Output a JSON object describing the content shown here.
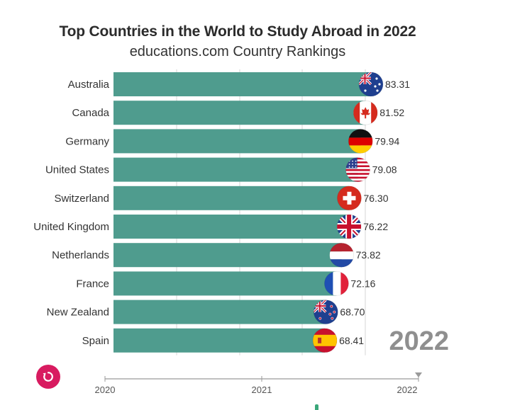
{
  "header": {
    "title": "Top Countries in the World to Study Abroad in 2022",
    "subtitle": "educations.com Country Rankings"
  },
  "colors": {
    "bar": "#4f9c8e",
    "replay": "#d81b60",
    "year": "#8f8f8f"
  },
  "chart_data": {
    "type": "bar",
    "orientation": "horizontal",
    "title": "Top Countries in the World to Study Abroad in 2022",
    "subtitle": "educations.com Country Rankings",
    "categories": [
      "Australia",
      "Canada",
      "Germany",
      "United States",
      "Switzerland",
      "United Kingdom",
      "Netherlands",
      "France",
      "New Zealand",
      "Spain"
    ],
    "values": [
      83.31,
      81.52,
      79.94,
      79.08,
      76.3,
      76.22,
      73.82,
      72.16,
      68.7,
      68.41
    ],
    "value_labels": [
      "83.31",
      "81.52",
      "79.94",
      "79.08",
      "76.30",
      "76.22",
      "73.82",
      "72.16",
      "68.70",
      "68.41"
    ],
    "flags": [
      "australia-flag",
      "canada-flag",
      "germany-flag",
      "usa-flag",
      "switzerland-flag",
      "uk-flag",
      "netherlands-flag",
      "france-flag",
      "new-zealand-flag",
      "spain-flag"
    ],
    "current_year": "2022",
    "grid": true,
    "legend": "none"
  },
  "timeline": {
    "ticks": [
      "2020",
      "2021",
      "2022"
    ],
    "position": "2022",
    "replay_icon": "replay-icon"
  }
}
